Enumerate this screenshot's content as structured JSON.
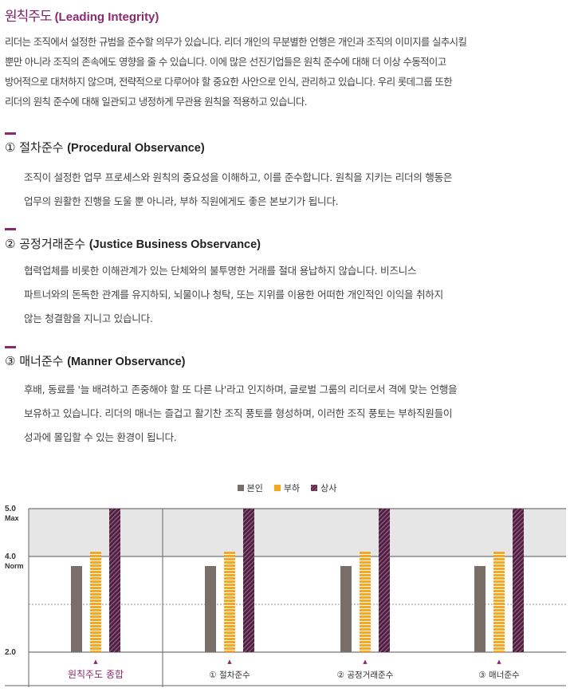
{
  "header": {
    "title_ko": "원칙주도",
    "title_en": "(Leading Integrity)"
  },
  "intro": {
    "lines": [
      "리더는 조직에서 설정한 규범을 준수할 의무가 있습니다. 리더 개인의 무분별한 언행은 개인과 조직의 이미지를 실추시킬",
      "뿐만 아니라 조직의 존속에도 영향을 줄 수 있습니다. 이에 많은 선진기업들은 원칙 준수에 대해 더 이상 수동적이고",
      "방어적으로 대처하지 않으며, 전략적으로 다루어야 할 중요한 사안으로 인식, 관리하고 있습니다. 우리 롯데그룹 또한",
      "리더의 원칙 준수에 대해 일관되고 냉정하게 무관용 원칙을 적용하고 있습니다."
    ]
  },
  "sections": [
    {
      "num": "①",
      "title_ko": "절차준수",
      "title_en": "(Procedural Observance)",
      "lines": [
        "조직이 설정한 업무 프로세스와 원칙의 중요성을 이해하고, 이를 준수합니다. 원칙을 지키는 리더의 행동은",
        "업무의 원활한 진행을 도울 뿐 아니라, 부하 직원에게도 좋은 본보기가 됩니다."
      ]
    },
    {
      "num": "②",
      "title_ko": "공정거래준수",
      "title_en": "(Justice Business Observance)",
      "lines": [
        "협력업체를 비롯한 이해관계가 있는 단체와의 불투명한 거래를 절대 용납하지 않습니다. 비즈니스",
        "파트너와의 돈독한 관계를 유지하되, 뇌물이나 청탁, 또는 지위를 이용한 어떠한 개인적인 이익을 취하지",
        "않는 청결함을 지니고 있습니다."
      ]
    },
    {
      "num": "③",
      "title_ko": "매너준수",
      "title_en": "(Manner Observance)",
      "lines": [
        "후배, 동료를 '늘 배려하고 존중해야 할 또 다른 나'라고 인지하며, 글로벌 그룹의 리더로서 격에 맞는 언행을",
        "보유하고 있습니다. 리더의 매너는 즐겁고 활기찬 조직 풍토를 형성하며, 이러한 조직 풍토는 부하직원들이",
        "성과에 몰입할 수 있는 환경이 됩니다."
      ]
    }
  ],
  "colors": {
    "accent": "#8a2a6e",
    "self": "#7a6e68",
    "subordinate": "#f5a623",
    "superior": "#5a2a48"
  },
  "chart_data": {
    "type": "bar",
    "legend": [
      "본인",
      "부하",
      "상사"
    ],
    "legend_placement": "top-center",
    "y_ticks": [
      {
        "value": 5.0,
        "label": "5.0",
        "sublabel": "Max"
      },
      {
        "value": 4.0,
        "label": "4.0",
        "sublabel": "Norm"
      },
      {
        "value": 2.0,
        "label": "2.0",
        "sublabel": ""
      }
    ],
    "ylim": [
      2.0,
      5.3
    ],
    "categories": [
      "원칙주도 종합",
      "① 절차준수",
      "② 공정거래준수",
      "③ 매너준수"
    ],
    "series": [
      {
        "name": "본인",
        "values": [
          3.8,
          3.8,
          3.8,
          3.8
        ]
      },
      {
        "name": "부하",
        "values": [
          4.1,
          4.1,
          4.1,
          4.1
        ]
      },
      {
        "name": "상사",
        "values": [
          5.3,
          5.3,
          5.3,
          5.3
        ]
      }
    ],
    "band_above_norm": true
  }
}
